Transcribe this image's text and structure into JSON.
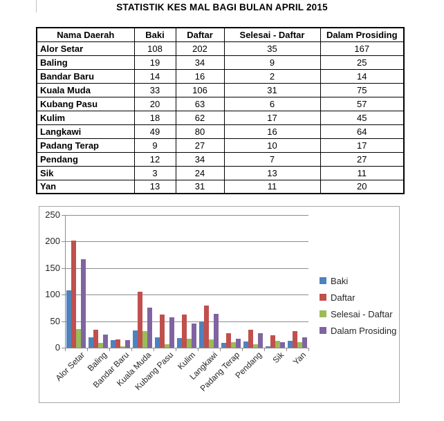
{
  "page": {
    "title": "STATISTIK KES MAL BAGI BULAN APRIL 2015"
  },
  "table": {
    "columns": [
      "Nama Daerah",
      "Baki",
      "Daftar",
      "Selesai - Daftar",
      "Dalam Prosiding"
    ],
    "rows": [
      {
        "daerah": "Alor Setar",
        "values": [
          108,
          202,
          35,
          167
        ]
      },
      {
        "daerah": "Baling",
        "values": [
          19,
          34,
          9,
          25
        ]
      },
      {
        "daerah": "Bandar Baru",
        "values": [
          14,
          16,
          2,
          14
        ]
      },
      {
        "daerah": "Kuala Muda",
        "values": [
          33,
          106,
          31,
          75
        ]
      },
      {
        "daerah": "Kubang Pasu",
        "values": [
          20,
          63,
          6,
          57
        ]
      },
      {
        "daerah": "Kulim",
        "values": [
          18,
          62,
          17,
          45
        ]
      },
      {
        "daerah": "Langkawi",
        "values": [
          49,
          80,
          16,
          64
        ]
      },
      {
        "daerah": "Padang Terap",
        "values": [
          9,
          27,
          10,
          17
        ]
      },
      {
        "daerah": "Pendang",
        "values": [
          12,
          34,
          7,
          27
        ]
      },
      {
        "daerah": "Sik",
        "values": [
          3,
          24,
          13,
          11
        ]
      },
      {
        "daerah": "Yan",
        "values": [
          13,
          31,
          11,
          20
        ]
      }
    ]
  },
  "chart_data": {
    "type": "bar",
    "title": "",
    "xlabel": "",
    "ylabel": "",
    "categories": [
      "Alor Setar",
      "Baling",
      "Bandar Baru",
      "Kuala Muda",
      "Kubang Pasu",
      "Kulim",
      "Langkawi",
      "Padang Terap",
      "Pendang",
      "Sik",
      "Yan"
    ],
    "series": [
      {
        "name": "Baki",
        "color": "#4F81BD",
        "values": [
          108,
          19,
          14,
          33,
          20,
          18,
          49,
          9,
          12,
          3,
          13
        ]
      },
      {
        "name": "Daftar",
        "color": "#C0504D",
        "values": [
          202,
          34,
          16,
          106,
          63,
          62,
          80,
          27,
          34,
          24,
          31
        ]
      },
      {
        "name": "Selesai - Daftar",
        "color": "#9BBB59",
        "values": [
          35,
          9,
          2,
          31,
          6,
          17,
          16,
          10,
          7,
          13,
          11
        ]
      },
      {
        "name": "Dalam Prosiding",
        "color": "#8064A2",
        "values": [
          167,
          25,
          14,
          75,
          57,
          45,
          64,
          17,
          27,
          11,
          20
        ]
      }
    ],
    "ylim": [
      0,
      250
    ],
    "yticks": [
      0,
      50,
      100,
      150,
      200,
      250
    ],
    "grid": true,
    "legend_position": "right"
  },
  "style_colors": {
    "grid": "#8c8c8c",
    "axis": "#8c8c8c",
    "chart_border": "#a6a6a6",
    "chart_text": "#262626",
    "table_border": "#000000",
    "background": "#ffffff"
  }
}
